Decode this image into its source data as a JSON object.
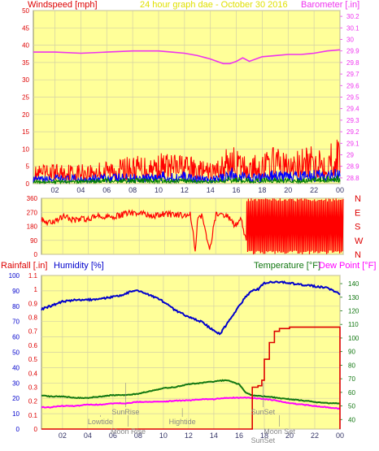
{
  "colors": {
    "bg": "#ffffff",
    "plot_bg": "#ffff99",
    "grid": "#d4d0a4",
    "wind": "#ff0000",
    "gust_avg": "#0000ff",
    "wind_avg": "#008000",
    "barometer": "#ee33ee",
    "direction": "#ff0000",
    "rain": "#dd0000",
    "humidity": "#0000cc",
    "temperature": "#117711",
    "dewpoint": "#ff00ff",
    "title": "#e7e700",
    "sun_moon": "#888888"
  },
  "chart_data": [
    {
      "type": "line",
      "title": "24 hour graph dae - October 30 2016",
      "left_axis_label": "Windspeed [mph]",
      "right_axis_label": "Barometer [.in]",
      "x_ticks": [
        "02",
        "04",
        "06",
        "08",
        "10",
        "12",
        "14",
        "16",
        "18",
        "20",
        "22",
        "00"
      ],
      "xlim": [
        0.333,
        24
      ],
      "left_ylim": [
        0,
        50
      ],
      "left_ticks": [
        "0",
        "5",
        "10",
        "15",
        "20",
        "25",
        "30",
        "35",
        "40",
        "45",
        "50"
      ],
      "right_ylim": [
        28.75,
        30.25
      ],
      "right_ticks": [
        "28.8",
        "28.9",
        "29",
        "29.1",
        "29.2",
        "29.3",
        "29.4",
        "29.5",
        "29.6",
        "29.7",
        "29.8",
        "29.9",
        "30",
        "30.1",
        "30.2"
      ],
      "grid": true,
      "series": [
        {
          "key": "wind",
          "axis": "left",
          "style": "spiky",
          "x": [
            0.33,
            2,
            4,
            6,
            8,
            10,
            12,
            13,
            14,
            15,
            15.5,
            16,
            17,
            18,
            19,
            20,
            21,
            22,
            23,
            24
          ],
          "values": [
            5,
            6,
            6,
            7,
            8,
            9,
            9,
            7,
            6,
            9,
            12,
            10,
            8,
            9,
            11,
            9,
            10,
            11,
            12,
            14
          ]
        },
        {
          "key": "gust_avg",
          "axis": "left",
          "style": "spiky",
          "x": [
            0.33,
            2,
            4,
            6,
            8,
            10,
            12,
            13,
            14,
            15,
            15.5,
            16,
            17,
            18,
            19,
            20,
            21,
            22,
            23,
            24
          ],
          "values": [
            2,
            2.5,
            2.5,
            3,
            3,
            3.5,
            3.5,
            2.5,
            2,
            3.5,
            5,
            4,
            3,
            3.5,
            4,
            3.5,
            3.5,
            4,
            4.5,
            5
          ]
        },
        {
          "key": "wind_avg",
          "axis": "left",
          "style": "spiky",
          "x": [
            0.33,
            2,
            4,
            6,
            8,
            10,
            12,
            13,
            14,
            15,
            15.5,
            16,
            17,
            18,
            19,
            20,
            21,
            22,
            23,
            24
          ],
          "values": [
            1,
            1,
            1,
            1.5,
            1.5,
            1.5,
            1.5,
            1,
            1,
            1.5,
            2.5,
            2,
            1.5,
            1.5,
            2,
            1.5,
            1.5,
            2,
            2,
            2.5
          ]
        },
        {
          "key": "barometer",
          "axis": "right",
          "style": "line",
          "x": [
            0.33,
            2,
            4,
            6,
            8,
            9,
            10,
            11,
            12,
            13,
            14,
            15,
            15.5,
            16,
            16.5,
            17,
            18,
            19,
            20,
            21,
            22,
            23,
            24
          ],
          "values": [
            29.89,
            29.89,
            29.88,
            29.89,
            29.9,
            29.9,
            29.9,
            29.89,
            29.88,
            29.86,
            29.83,
            29.79,
            29.79,
            29.81,
            29.84,
            29.81,
            29.85,
            29.86,
            29.87,
            29.87,
            29.88,
            29.9,
            29.91
          ]
        }
      ]
    },
    {
      "type": "scatter",
      "title": "",
      "left_ticks": [
        "0",
        "90",
        "180",
        "270",
        "360"
      ],
      "right_labels": [
        "N",
        "W",
        "S",
        "E",
        "N"
      ],
      "ylim": [
        0,
        360
      ],
      "xlim": [
        0.333,
        24
      ],
      "grid": true,
      "series": [
        {
          "key": "direction",
          "x": [
            0.33,
            1,
            2,
            3,
            4,
            5,
            6,
            7,
            8,
            9,
            10,
            11,
            12,
            12.4,
            12.6,
            13,
            13.5,
            14,
            14.5,
            15,
            15.5,
            16,
            16.5,
            17,
            17.5,
            18,
            18.5,
            19,
            19.5,
            20,
            20.5,
            21,
            21.5,
            22,
            22.5,
            23,
            23.5,
            24
          ],
          "values": [
            220,
            200,
            240,
            220,
            230,
            250,
            240,
            260,
            270,
            240,
            260,
            250,
            260,
            30,
            250,
            240,
            20,
            250,
            260,
            240,
            180,
            220,
            40,
            330,
            20,
            340,
            10,
            330,
            20,
            350,
            10,
            340,
            0,
            350,
            10,
            330,
            20,
            340
          ]
        }
      ]
    },
    {
      "type": "line",
      "title": "",
      "labels": {
        "rain": "Rainfall [.in]",
        "humidity": "Humidity [%]",
        "temperature": "Temperature [°F]",
        "dewpoint": "Dew Point [°F]"
      },
      "x_ticks": [
        "02",
        "04",
        "06",
        "08",
        "10",
        "12",
        "14",
        "16",
        "18",
        "20",
        "22",
        "00"
      ],
      "xlim": [
        0.333,
        24
      ],
      "humidity_ticks": [
        "0",
        "10",
        "20",
        "30",
        "40",
        "50",
        "60",
        "70",
        "80",
        "90",
        "100"
      ],
      "humidity_ylim": [
        0,
        100
      ],
      "rain_ticks": [
        "0",
        "0.1",
        "0.2",
        "0.3",
        "0.4",
        "0.5",
        "0.6",
        "0.7",
        "0.8",
        "0.9",
        "1",
        "1.1"
      ],
      "rain_ylim": [
        0,
        1.1
      ],
      "temp_ticks": [
        "40",
        "50",
        "60",
        "70",
        "80",
        "90",
        "100",
        "110",
        "120",
        "130",
        "140"
      ],
      "temp_ylim": [
        33,
        146
      ],
      "grid": true,
      "series": [
        {
          "key": "humidity",
          "axis": "humidity",
          "x": [
            0.33,
            1,
            2,
            3,
            4,
            5,
            6,
            7,
            7.5,
            8,
            9,
            10,
            11,
            12,
            13,
            14,
            14.5,
            15,
            16,
            16.5,
            17,
            17.5,
            18,
            19,
            20,
            21,
            22,
            23,
            24
          ],
          "values": [
            78,
            80,
            83,
            84,
            84,
            85,
            86,
            88,
            90,
            90,
            87,
            83,
            77,
            73,
            70,
            64,
            62,
            68,
            80,
            86,
            90,
            91,
            95,
            96,
            95,
            94,
            93,
            92,
            88
          ]
        },
        {
          "key": "temperature",
          "axis": "temp",
          "x": [
            0.33,
            1,
            2,
            3,
            4,
            5,
            6,
            7,
            8,
            9,
            10,
            11,
            12,
            13,
            14,
            15,
            16,
            16.5,
            17,
            18,
            19,
            20,
            21,
            22,
            23,
            24
          ],
          "values": [
            58,
            57,
            57,
            56,
            56,
            57,
            58,
            58,
            59,
            61,
            63,
            64,
            66,
            67,
            68,
            69,
            66,
            60,
            58,
            57,
            56,
            55,
            54,
            53,
            52,
            52
          ]
        },
        {
          "key": "dewpoint",
          "axis": "temp",
          "x": [
            0.33,
            1,
            2,
            3,
            4,
            5,
            6,
            7,
            8,
            9,
            10,
            11,
            12,
            13,
            14,
            15,
            16,
            17,
            18,
            19,
            20,
            21,
            22,
            23,
            24
          ],
          "values": [
            49,
            49,
            50,
            50,
            51,
            51,
            52,
            52,
            53,
            53,
            53,
            54,
            54,
            55,
            55,
            56,
            56,
            56,
            55,
            54,
            52,
            51,
            50,
            49,
            48
          ]
        },
        {
          "key": "rain",
          "axis": "rain",
          "step": true,
          "x": [
            0.33,
            17,
            17.05,
            17.5,
            17.8,
            18,
            18.4,
            18.8,
            19.2,
            20,
            23.8,
            24
          ],
          "values": [
            0,
            0,
            0.3,
            0.31,
            0.35,
            0.5,
            0.62,
            0.7,
            0.72,
            0.73,
            0.73,
            0
          ]
        }
      ],
      "annotations": [
        {
          "text": "SunRise",
          "x": 7.0,
          "row": 0,
          "line_to": 0.33
        },
        {
          "text": "Lowtide",
          "x": 5.0,
          "row": 1,
          "line_to": 0.1
        },
        {
          "text": "Moon Rise",
          "x": 7.2,
          "row": 2,
          "line_to": 0.1
        },
        {
          "text": "Hightide",
          "x": 11.5,
          "row": 1,
          "line_to": 0.15
        },
        {
          "text": "SunSet",
          "x": 17.9,
          "row": 0,
          "line_to": 0.33
        },
        {
          "text": "Moon Set",
          "x": 19.2,
          "row": 2,
          "line_to": 0.1
        },
        {
          "text": "SunSet",
          "x": 17.9,
          "row": 3,
          "line_to": 0.0
        }
      ]
    }
  ]
}
